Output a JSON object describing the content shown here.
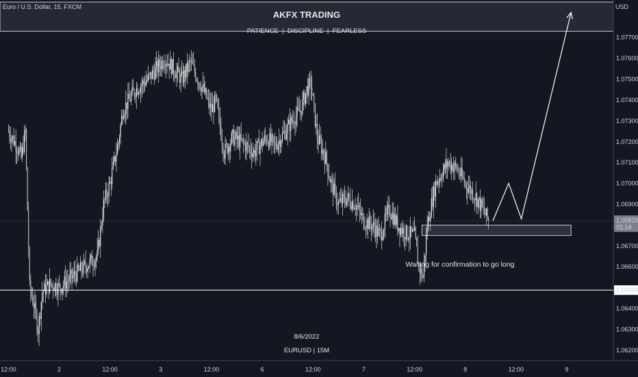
{
  "chart_data": {
    "type": "candlestick",
    "symbol_title": "Euro / U.S. Dollar, 15, FXCM",
    "currency": "USD",
    "watermark": {
      "title": "AKFX TRADING",
      "subtitle": "PATIENCE  |  DISCIPLINE  |  FEARLESS",
      "date": "8/6/2022",
      "symbol": "EURUSD | 15M"
    },
    "ylim": [
      1.0615,
      1.0788
    ],
    "y_ticks": [
      1.077,
      1.076,
      1.075,
      1.074,
      1.073,
      1.072,
      1.071,
      1.07,
      1.069,
      1.067,
      1.066,
      1.064,
      1.063,
      1.062
    ],
    "y_tick_labels": [
      "1.07700",
      "1.07600",
      "1.07500",
      "1.07400",
      "1.07300",
      "1.07200",
      "1.07100",
      "1.07000",
      "1.06900",
      "1.06700",
      "1.06600",
      "1.06400",
      "1.06300",
      "1.06200"
    ],
    "x_ticks": [
      "12:00",
      "2",
      "12:00",
      "3",
      "12:00",
      "6",
      "12:00",
      "7",
      "12:00",
      "8",
      "12:00",
      "9"
    ],
    "x_tick_values": [
      0,
      48,
      96,
      144,
      192,
      240,
      288,
      336,
      384,
      432,
      480,
      528
    ],
    "xlim": [
      -8,
      572
    ],
    "last_candle_index": 454,
    "price_path": [
      [
        0,
        1.0725
      ],
      [
        8,
        1.0718
      ],
      [
        12,
        1.0712
      ],
      [
        16,
        1.0725
      ],
      [
        20,
        1.065
      ],
      [
        24,
        1.0642
      ],
      [
        28,
        1.063
      ],
      [
        32,
        1.0648
      ],
      [
        40,
        1.0652
      ],
      [
        48,
        1.065
      ],
      [
        60,
        1.0655
      ],
      [
        72,
        1.066
      ],
      [
        84,
        1.0665
      ],
      [
        90,
        1.069
      ],
      [
        96,
        1.07
      ],
      [
        104,
        1.072
      ],
      [
        108,
        1.0735
      ],
      [
        120,
        1.0745
      ],
      [
        132,
        1.075
      ],
      [
        148,
        1.076
      ],
      [
        156,
        1.0755
      ],
      [
        164,
        1.075
      ],
      [
        172,
        1.0758
      ],
      [
        184,
        1.0745
      ],
      [
        192,
        1.0735
      ],
      [
        196,
        1.074
      ],
      [
        204,
        1.0715
      ],
      [
        212,
        1.0722
      ],
      [
        220,
        1.072
      ],
      [
        232,
        1.0715
      ],
      [
        244,
        1.0722
      ],
      [
        252,
        1.0718
      ],
      [
        262,
        1.0725
      ],
      [
        268,
        1.073
      ],
      [
        276,
        1.0735
      ],
      [
        282,
        1.0745
      ],
      [
        286,
        1.0748
      ],
      [
        292,
        1.0722
      ],
      [
        300,
        1.0712
      ],
      [
        304,
        1.0702
      ],
      [
        312,
        1.069
      ],
      [
        320,
        1.0693
      ],
      [
        328,
        1.069
      ],
      [
        336,
        1.0682
      ],
      [
        344,
        1.068
      ],
      [
        352,
        1.0675
      ],
      [
        360,
        1.0688
      ],
      [
        368,
        1.068
      ],
      [
        376,
        1.0676
      ],
      [
        384,
        1.0675
      ],
      [
        388,
        1.066
      ],
      [
        392,
        1.0655
      ],
      [
        396,
        1.068
      ],
      [
        404,
        1.07
      ],
      [
        410,
        1.0705
      ],
      [
        416,
        1.071
      ],
      [
        424,
        1.0707
      ],
      [
        432,
        1.07
      ],
      [
        440,
        1.0695
      ],
      [
        446,
        1.069
      ],
      [
        452,
        1.0684
      ],
      [
        454,
        1.0682
      ]
    ],
    "key_extremes": {
      "high": 1.0764,
      "low": 1.0627
    },
    "current_price": {
      "value": 1.0682,
      "label": "1.06820",
      "countdown": "01:14",
      "color": "#7b8191"
    },
    "support_line": {
      "value": 1.06488,
      "label": "1.06488",
      "color": "#ffffff"
    },
    "top_zone": {
      "from": 1.0773,
      "to": 1.0787
    },
    "entry_zone": {
      "from": 1.0675,
      "to": 1.068,
      "x_from": 391,
      "x_to": 532
    },
    "projection": [
      [
        458,
        1.0682
      ],
      [
        473,
        1.07
      ],
      [
        485,
        1.0683
      ],
      [
        532,
        1.0782
      ]
    ],
    "annotation": {
      "text": "Waiting for confirmation to go long",
      "x": 427,
      "y": 1.066
    },
    "colors": {
      "background": "#131722",
      "candle": "#ffffff",
      "grid": "#2a2e39",
      "zone_fill": "#343846",
      "zone_border": "#c9cbd3"
    }
  }
}
